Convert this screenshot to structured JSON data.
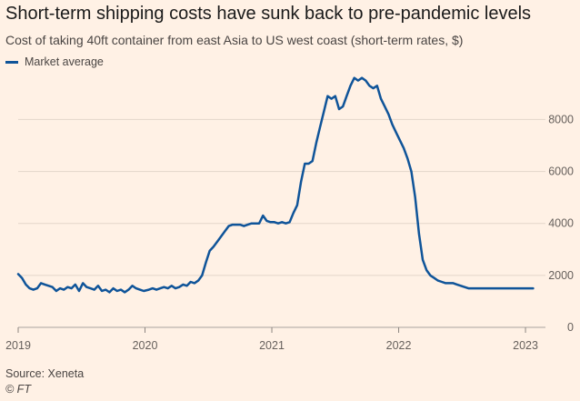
{
  "chart_data": {
    "type": "line",
    "title": "Short-term shipping costs have sunk back to pre-pandemic levels",
    "subtitle": "Cost of taking 40ft container from east Asia to US west coast (short-term rates, $)",
    "xlabel": "",
    "ylabel": "",
    "xlim": [
      2019.0,
      2023.1
    ],
    "ylim": [
      0,
      9800
    ],
    "x_ticks": [
      2019,
      2020,
      2021,
      2022,
      2023
    ],
    "x_tick_labels": [
      "2019",
      "2020",
      "2021",
      "2022",
      "2023"
    ],
    "y_ticks": [
      0,
      2000,
      4000,
      6000,
      8000
    ],
    "y_tick_labels": [
      "0",
      "2000",
      "4000",
      "6000",
      "8000"
    ],
    "grid": "horizontal",
    "legend": "top-left",
    "series": [
      {
        "name": "Market average",
        "color": "#0F5499",
        "x": [
          2019.0,
          2019.03,
          2019.06,
          2019.09,
          2019.12,
          2019.15,
          2019.18,
          2019.21,
          2019.24,
          2019.27,
          2019.3,
          2019.33,
          2019.36,
          2019.39,
          2019.42,
          2019.45,
          2019.48,
          2019.51,
          2019.54,
          2019.57,
          2019.6,
          2019.63,
          2019.66,
          2019.69,
          2019.72,
          2019.75,
          2019.78,
          2019.81,
          2019.84,
          2019.87,
          2019.9,
          2019.93,
          2019.96,
          2019.99,
          2020.03,
          2020.06,
          2020.09,
          2020.12,
          2020.15,
          2020.18,
          2020.21,
          2020.24,
          2020.27,
          2020.3,
          2020.33,
          2020.36,
          2020.39,
          2020.42,
          2020.45,
          2020.48,
          2020.51,
          2020.54,
          2020.57,
          2020.6,
          2020.63,
          2020.66,
          2020.69,
          2020.72,
          2020.75,
          2020.78,
          2020.81,
          2020.84,
          2020.87,
          2020.9,
          2020.93,
          2020.96,
          2020.99,
          2021.02,
          2021.05,
          2021.08,
          2021.11,
          2021.14,
          2021.17,
          2021.2,
          2021.23,
          2021.26,
          2021.29,
          2021.32,
          2021.35,
          2021.38,
          2021.41,
          2021.44,
          2021.47,
          2021.5,
          2021.53,
          2021.56,
          2021.59,
          2021.62,
          2021.65,
          2021.68,
          2021.71,
          2021.74,
          2021.77,
          2021.8,
          2021.83,
          2021.86,
          2021.89,
          2021.92,
          2021.95,
          2021.98,
          2022.01,
          2022.04,
          2022.07,
          2022.1,
          2022.13,
          2022.16,
          2022.19,
          2022.22,
          2022.25,
          2022.28,
          2022.31,
          2022.34,
          2022.37,
          2022.4,
          2022.43,
          2022.46,
          2022.49,
          2022.52,
          2022.55,
          2022.58,
          2022.61,
          2022.64,
          2022.67,
          2022.7,
          2022.73,
          2022.76,
          2022.79,
          2022.82,
          2022.85,
          2022.88,
          2022.91,
          2022.94,
          2022.97,
          2023.0,
          2023.03,
          2023.06
        ],
        "values": [
          2050,
          1900,
          1650,
          1500,
          1450,
          1500,
          1700,
          1650,
          1600,
          1550,
          1400,
          1500,
          1450,
          1550,
          1500,
          1650,
          1400,
          1700,
          1550,
          1500,
          1450,
          1600,
          1400,
          1450,
          1350,
          1500,
          1400,
          1450,
          1350,
          1450,
          1600,
          1500,
          1450,
          1400,
          1450,
          1500,
          1450,
          1500,
          1550,
          1500,
          1600,
          1500,
          1550,
          1650,
          1600,
          1750,
          1700,
          1800,
          2000,
          2500,
          2950,
          3100,
          3300,
          3500,
          3700,
          3900,
          3950,
          3950,
          3950,
          3900,
          3950,
          4000,
          4000,
          4000,
          4300,
          4100,
          4050,
          4050,
          4000,
          4050,
          4000,
          4050,
          4400,
          4700,
          5600,
          6300,
          6300,
          6400,
          7100,
          7700,
          8300,
          8900,
          8800,
          8900,
          8400,
          8500,
          8900,
          9300,
          9600,
          9500,
          9600,
          9500,
          9300,
          9200,
          9300,
          8800,
          8500,
          8200,
          7800,
          7500,
          7200,
          6900,
          6500,
          6000,
          5000,
          3600,
          2600,
          2200,
          2000,
          1900,
          1800,
          1750,
          1700,
          1700,
          1700,
          1650,
          1600,
          1550,
          1500,
          1500,
          1500,
          1500,
          1500,
          1500,
          1500,
          1500,
          1500,
          1500,
          1500,
          1500,
          1500,
          1500,
          1500,
          1500,
          1500,
          1500
        ]
      }
    ],
    "source": "Source: Xeneta",
    "credit": "© FT"
  }
}
